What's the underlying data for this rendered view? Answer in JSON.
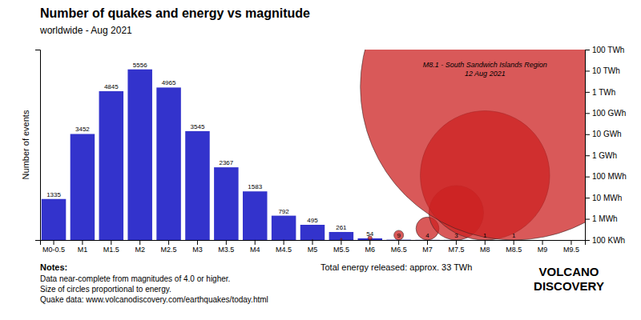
{
  "chart_data": {
    "type": "bar",
    "title": "Number of quakes and energy vs magnitude",
    "subtitle": "worldwide - Aug 2021",
    "categories": [
      "M0-0.5",
      "M1",
      "M1.5",
      "M2",
      "M2.5",
      "M3",
      "M3.5",
      "M4",
      "M4.5",
      "M5",
      "M5.5",
      "M6",
      "M6.5",
      "M7",
      "M7.5",
      "M8",
      "M8.5",
      "M9",
      "M9.5"
    ],
    "values": [
      1335,
      3452,
      4845,
      5556,
      4965,
      3545,
      2367,
      1583,
      792,
      495,
      261,
      54,
      9,
      4,
      3,
      1,
      1,
      0,
      0
    ],
    "color": "#3333cc",
    "data_labels": true,
    "ylabel": "Number of events",
    "ylim": [
      0,
      6200
    ],
    "yticks": [],
    "grid": false,
    "y2lim": [
      0,
      6200
    ],
    "y2ticks": [
      {
        "value": 0,
        "label": "100 KWh"
      },
      {
        "value": 688.8888888888889,
        "label": "1 MWh"
      },
      {
        "value": 1377.7777777777778,
        "label": "10 MWh"
      },
      {
        "value": 2066.6666666666665,
        "label": "100 MWh"
      },
      {
        "value": 2755.5555555555557,
        "label": "1 GWh"
      },
      {
        "value": 3444.4444444444443,
        "label": "10 GWh"
      },
      {
        "value": 4133.333333333333,
        "label": "100 GWh"
      },
      {
        "value": 4822.222222222223,
        "label": "1 TWh"
      },
      {
        "value": 5511.111111111111,
        "label": "10 TWh"
      },
      {
        "value": 6200,
        "label": "100 TWh"
      }
    ],
    "energy_bubbles": {
      "magnitudes": [
        0,
        0.5,
        1,
        1.5,
        2,
        2.5,
        3,
        3.5,
        4,
        4.5,
        5,
        5.5,
        6,
        6.5,
        7,
        7.5,
        8,
        8.5
      ],
      "radii": [
        0.0021,
        0.005,
        0.0118,
        0.028,
        0.0665,
        0.1577,
        0.374,
        0.887,
        2.103,
        4.988,
        11.829,
        28.05,
        66.518,
        157.739,
        374.059,
        887.033,
        2103.488,
        4988.156
      ],
      "color": "#cc2222"
    },
    "annotation": "M8.1 - South Sandwich Islands Region\n12 Aug 2021",
    "notes": [
      "Notes:",
      "Data near-complete from magnitudes of 4.0 or higher.",
      "Size of circles proportional to energy.",
      "Quake data: www.volcanodiscovery.com/earthquakes/today.html"
    ],
    "total_energy": "Total energy released: approx. 33 TWh",
    "logo": [
      "VOLCANO",
      "DISCOVERY"
    ]
  }
}
